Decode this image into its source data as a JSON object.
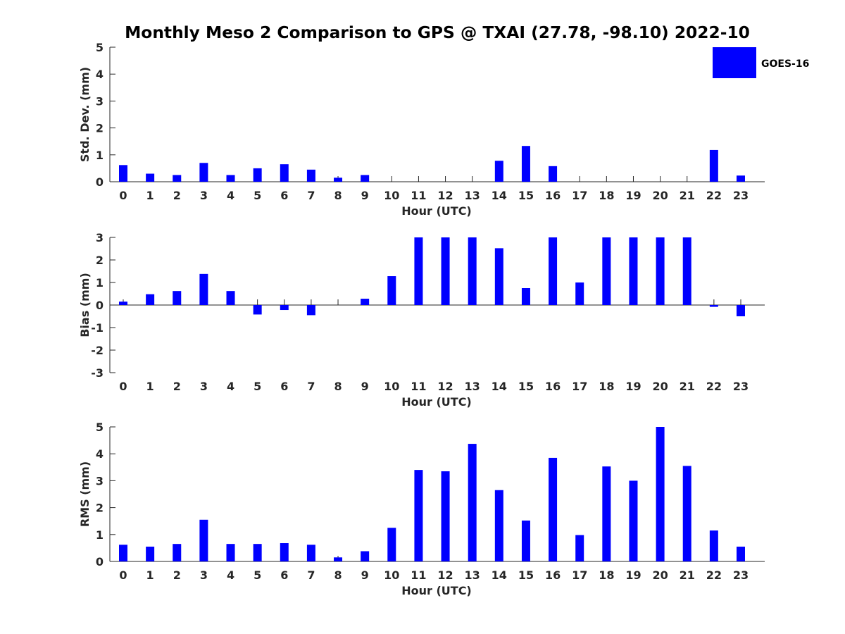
{
  "title": "Monthly Meso 2 Comparison to GPS @ TXAI (27.78, -98.10) 2022-10",
  "legend": {
    "label": "GOES-16",
    "color": "#0000ff"
  },
  "chart_data": [
    {
      "type": "bar",
      "name": "std_dev",
      "xlabel": "Hour (UTC)",
      "ylabel": "Std. Dev. (mm)",
      "ylim": [
        0,
        5
      ],
      "yticks": [
        0,
        1,
        2,
        3,
        4,
        5
      ],
      "categories": [
        "0",
        "1",
        "2",
        "3",
        "4",
        "5",
        "6",
        "7",
        "8",
        "9",
        "10",
        "11",
        "12",
        "13",
        "14",
        "15",
        "16",
        "17",
        "18",
        "19",
        "20",
        "21",
        "22",
        "23"
      ],
      "series": [
        {
          "name": "GOES-16",
          "color": "#0000ff",
          "values": [
            0.62,
            0.3,
            0.25,
            0.7,
            0.25,
            0.5,
            0.65,
            0.45,
            0.15,
            0.25,
            null,
            null,
            null,
            null,
            0.78,
            1.33,
            0.58,
            null,
            null,
            null,
            null,
            null,
            1.18,
            0.23
          ]
        }
      ]
    },
    {
      "type": "bar",
      "name": "bias",
      "xlabel": "Hour (UTC)",
      "ylabel": "Bias (mm)",
      "ylim": [
        -3,
        3
      ],
      "yticks": [
        -3,
        -2,
        -1,
        0,
        1,
        2,
        3
      ],
      "categories": [
        "0",
        "1",
        "2",
        "3",
        "4",
        "5",
        "6",
        "7",
        "8",
        "9",
        "10",
        "11",
        "12",
        "13",
        "14",
        "15",
        "16",
        "17",
        "18",
        "19",
        "20",
        "21",
        "22",
        "23"
      ],
      "series": [
        {
          "name": "GOES-16",
          "color": "#0000ff",
          "values": [
            0.15,
            0.48,
            0.62,
            1.38,
            0.62,
            -0.42,
            -0.22,
            -0.45,
            0.0,
            0.28,
            1.28,
            3.0,
            3.0,
            3.0,
            2.52,
            0.75,
            3.0,
            1.0,
            3.0,
            3.0,
            3.0,
            3.0,
            -0.08,
            -0.5
          ]
        }
      ]
    },
    {
      "type": "bar",
      "name": "rms",
      "xlabel": "Hour (UTC)",
      "ylabel": "RMS (mm)",
      "ylim": [
        0,
        5
      ],
      "yticks": [
        0,
        1,
        2,
        3,
        4,
        5
      ],
      "categories": [
        "0",
        "1",
        "2",
        "3",
        "4",
        "5",
        "6",
        "7",
        "8",
        "9",
        "10",
        "11",
        "12",
        "13",
        "14",
        "15",
        "16",
        "17",
        "18",
        "19",
        "20",
        "21",
        "22",
        "23"
      ],
      "series": [
        {
          "name": "GOES-16",
          "color": "#0000ff",
          "values": [
            0.62,
            0.55,
            0.65,
            1.55,
            0.65,
            0.65,
            0.68,
            0.62,
            0.15,
            0.38,
            1.25,
            3.4,
            3.35,
            4.37,
            2.65,
            1.52,
            3.85,
            0.98,
            3.53,
            3.0,
            5.0,
            3.55,
            1.15,
            0.55
          ]
        }
      ]
    }
  ]
}
